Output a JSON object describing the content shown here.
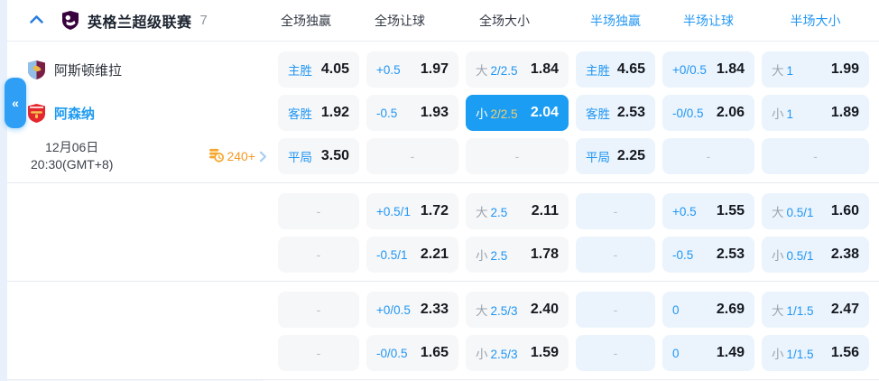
{
  "league": {
    "name": "英格兰超级联赛",
    "match_count": "7"
  },
  "columns": [
    {
      "label": "全场独赢",
      "half": false
    },
    {
      "label": "全场让球",
      "half": false
    },
    {
      "label": "全场大小",
      "half": false
    },
    {
      "label": "半场独赢",
      "half": true
    },
    {
      "label": "半场让球",
      "half": true
    },
    {
      "label": "半场大小",
      "half": true
    }
  ],
  "sidebar": {
    "collapse_glyph": "«"
  },
  "match": {
    "home_team": "阿斯顿维拉",
    "away_team": "阿森纳",
    "date": "12月06日",
    "time": "20:30(GMT+8)",
    "markets_count": "240+"
  },
  "icons": {
    "section_collapse": "chevron-up",
    "league_logo": "premier-league-crest",
    "home_badge": "aston-villa-crest",
    "away_badge": "arsenal-crest",
    "markets": "odds-list-clock",
    "more": "chevron-right",
    "sidebar": "double-chevron-left"
  },
  "colors": {
    "accent_blue": "#2196f3",
    "selected_cell_bg": "#1b9df3",
    "selected_line_gold": "#f0cf6f",
    "full_cell_bg": "#f6f7f9",
    "half_cell_bg": "#ebf4fd",
    "odds_text": "#15181e",
    "prefix_gray": "#9aa3ad",
    "markets_orange": "#f59a23",
    "league_purple": "#38003c",
    "villa_claret": "#7a1e45",
    "villa_blue": "#92bfe8",
    "arsenal_red": "#e5262c"
  },
  "blocks": [
    {
      "rows": [
        {
          "cells": [
            {
              "label": "主胜",
              "value": "4.05"
            },
            {
              "label": "+0.5",
              "value": "1.97"
            },
            {
              "prefix": "大",
              "label": "2/2.5",
              "value": "1.84"
            },
            {
              "label": "主胜",
              "value": "4.65"
            },
            {
              "label": "+0/0.5",
              "value": "1.84"
            },
            {
              "prefix": "大",
              "label": "1",
              "value": "1.99"
            }
          ]
        },
        {
          "cells": [
            {
              "label": "客胜",
              "value": "1.92"
            },
            {
              "label": "-0.5",
              "value": "1.93"
            },
            {
              "prefix": "小",
              "label": "2/2.5",
              "value": "2.04",
              "selected": true
            },
            {
              "label": "客胜",
              "value": "2.53"
            },
            {
              "label": "-0/0.5",
              "value": "2.06"
            },
            {
              "prefix": "小",
              "label": "1",
              "value": "1.89"
            }
          ]
        },
        {
          "cells": [
            {
              "label": "平局",
              "value": "3.50"
            },
            {
              "value": "-"
            },
            {
              "value": "-"
            },
            {
              "label": "平局",
              "value": "2.25"
            },
            {
              "value": "-"
            },
            {
              "value": "-"
            }
          ]
        }
      ]
    },
    {
      "rows": [
        {
          "cells": [
            {
              "value": "-"
            },
            {
              "label": "+0.5/1",
              "value": "1.72"
            },
            {
              "prefix": "大",
              "label": "2.5",
              "value": "2.11"
            },
            {
              "value": "-"
            },
            {
              "label": "+0.5",
              "value": "1.55"
            },
            {
              "prefix": "大",
              "label": "0.5/1",
              "value": "1.60"
            }
          ]
        },
        {
          "cells": [
            {
              "value": "-"
            },
            {
              "label": "-0.5/1",
              "value": "2.21"
            },
            {
              "prefix": "小",
              "label": "2.5",
              "value": "1.78"
            },
            {
              "value": "-"
            },
            {
              "label": "-0.5",
              "value": "2.53"
            },
            {
              "prefix": "小",
              "label": "0.5/1",
              "value": "2.38"
            }
          ]
        }
      ]
    },
    {
      "rows": [
        {
          "cells": [
            {
              "value": "-"
            },
            {
              "label": "+0/0.5",
              "value": "2.33"
            },
            {
              "prefix": "大",
              "label": "2.5/3",
              "value": "2.40"
            },
            {
              "value": "-"
            },
            {
              "label": "0",
              "value": "2.69"
            },
            {
              "prefix": "大",
              "label": "1/1.5",
              "value": "2.47"
            }
          ]
        },
        {
          "cells": [
            {
              "value": "-"
            },
            {
              "label": "-0/0.5",
              "value": "1.65"
            },
            {
              "prefix": "小",
              "label": "2.5/3",
              "value": "1.59"
            },
            {
              "value": "-"
            },
            {
              "label": "0",
              "value": "1.49"
            },
            {
              "prefix": "小",
              "label": "1/1.5",
              "value": "1.56"
            }
          ]
        }
      ]
    }
  ]
}
